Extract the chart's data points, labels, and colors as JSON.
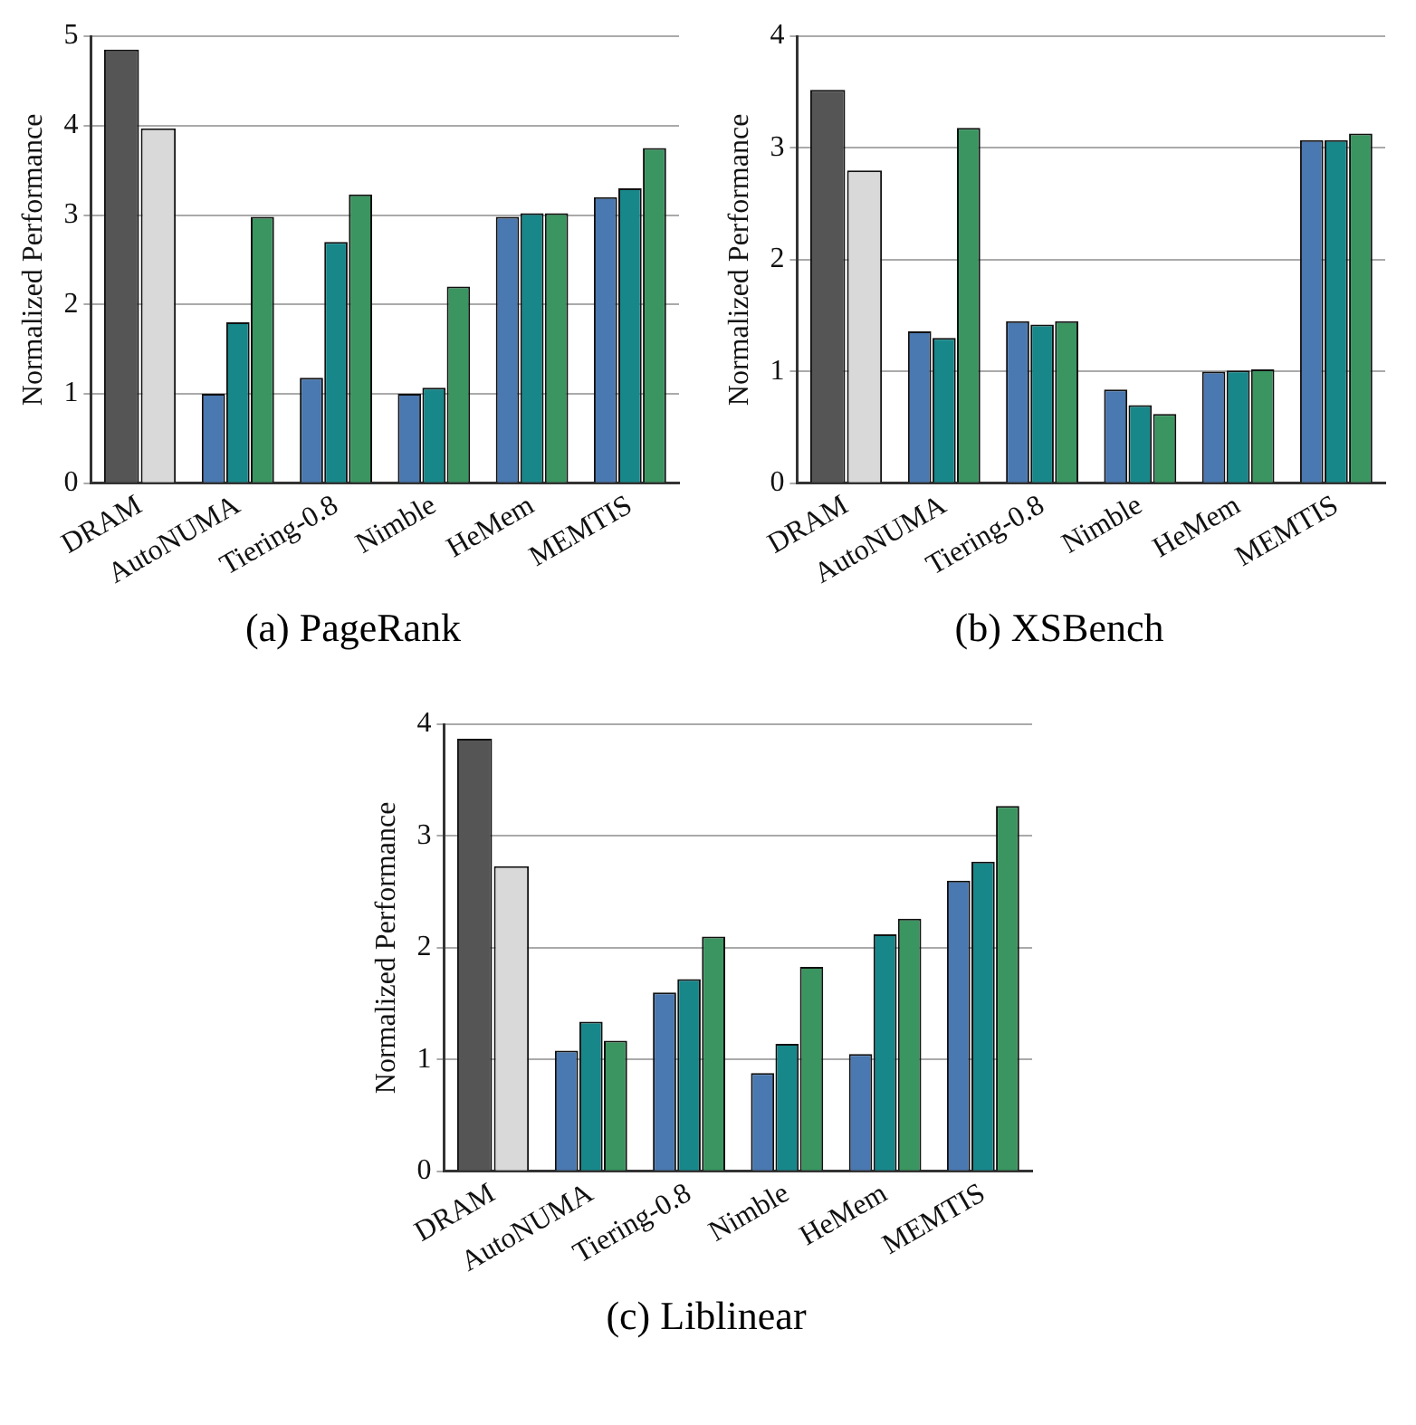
{
  "chart_data": [
    {
      "type": "bar",
      "title": "(a) PageRank",
      "ylabel": "Normalized Performance",
      "categories": [
        "DRAM",
        "AutoNUMA",
        "Tiering-0.8",
        "Nimble",
        "HeMem",
        "MEMTIS"
      ],
      "ylim": [
        0,
        5
      ],
      "yticks": [
        0,
        1,
        2,
        3,
        4,
        5
      ],
      "grid": "y",
      "legend": false,
      "series": [
        {
          "colors": [
            "#555555",
            "#4a78b0",
            "#4a78b0",
            "#4a78b0",
            "#4a78b0",
            "#4a78b0"
          ],
          "values": [
            4.85,
            1.0,
            1.18,
            1.0,
            2.98,
            3.2
          ]
        },
        {
          "colors": [
            "#d9d9d9",
            "#17878a",
            "#17878a",
            "#17878a",
            "#17878a",
            "#17878a"
          ],
          "values": [
            3.97,
            1.8,
            2.7,
            1.07,
            3.02,
            3.3
          ]
        },
        {
          "color": "#3a9560",
          "values": [
            null,
            2.98,
            3.23,
            2.2,
            3.02,
            3.75
          ]
        }
      ]
    },
    {
      "type": "bar",
      "title": "(b) XSBench",
      "ylabel": "Normalized Performance",
      "categories": [
        "DRAM",
        "AutoNUMA",
        "Tiering-0.8",
        "Nimble",
        "HeMem",
        "MEMTIS"
      ],
      "ylim": [
        0,
        4
      ],
      "yticks": [
        0,
        1,
        2,
        3,
        4
      ],
      "grid": "y",
      "legend": false,
      "series": [
        {
          "colors": [
            "#555555",
            "#4a78b0",
            "#4a78b0",
            "#4a78b0",
            "#4a78b0",
            "#4a78b0"
          ],
          "values": [
            3.52,
            1.36,
            1.45,
            0.84,
            1.0,
            3.07
          ]
        },
        {
          "colors": [
            "#d9d9d9",
            "#17878a",
            "#17878a",
            "#17878a",
            "#17878a",
            "#17878a"
          ],
          "values": [
            2.8,
            1.3,
            1.42,
            0.7,
            1.01,
            3.07
          ]
        },
        {
          "color": "#3a9560",
          "values": [
            null,
            3.18,
            1.45,
            0.62,
            1.02,
            3.13
          ]
        }
      ]
    },
    {
      "type": "bar",
      "title": "(c) Liblinear",
      "ylabel": "Normalized Performance",
      "categories": [
        "DRAM",
        "AutoNUMA",
        "Tiering-0.8",
        "Nimble",
        "HeMem",
        "MEMTIS"
      ],
      "ylim": [
        0,
        4
      ],
      "yticks": [
        0,
        1,
        2,
        3,
        4
      ],
      "grid": "y",
      "legend": false,
      "series": [
        {
          "colors": [
            "#555555",
            "#4a78b0",
            "#4a78b0",
            "#4a78b0",
            "#4a78b0",
            "#4a78b0"
          ],
          "values": [
            3.87,
            1.08,
            1.6,
            0.88,
            1.05,
            2.6
          ]
        },
        {
          "colors": [
            "#d9d9d9",
            "#17878a",
            "#17878a",
            "#17878a",
            "#17878a",
            "#17878a"
          ],
          "values": [
            2.73,
            1.34,
            1.72,
            1.14,
            2.12,
            2.77
          ]
        },
        {
          "color": "#3a9560",
          "values": [
            null,
            1.17,
            2.1,
            1.83,
            2.26,
            3.27
          ]
        }
      ]
    }
  ]
}
